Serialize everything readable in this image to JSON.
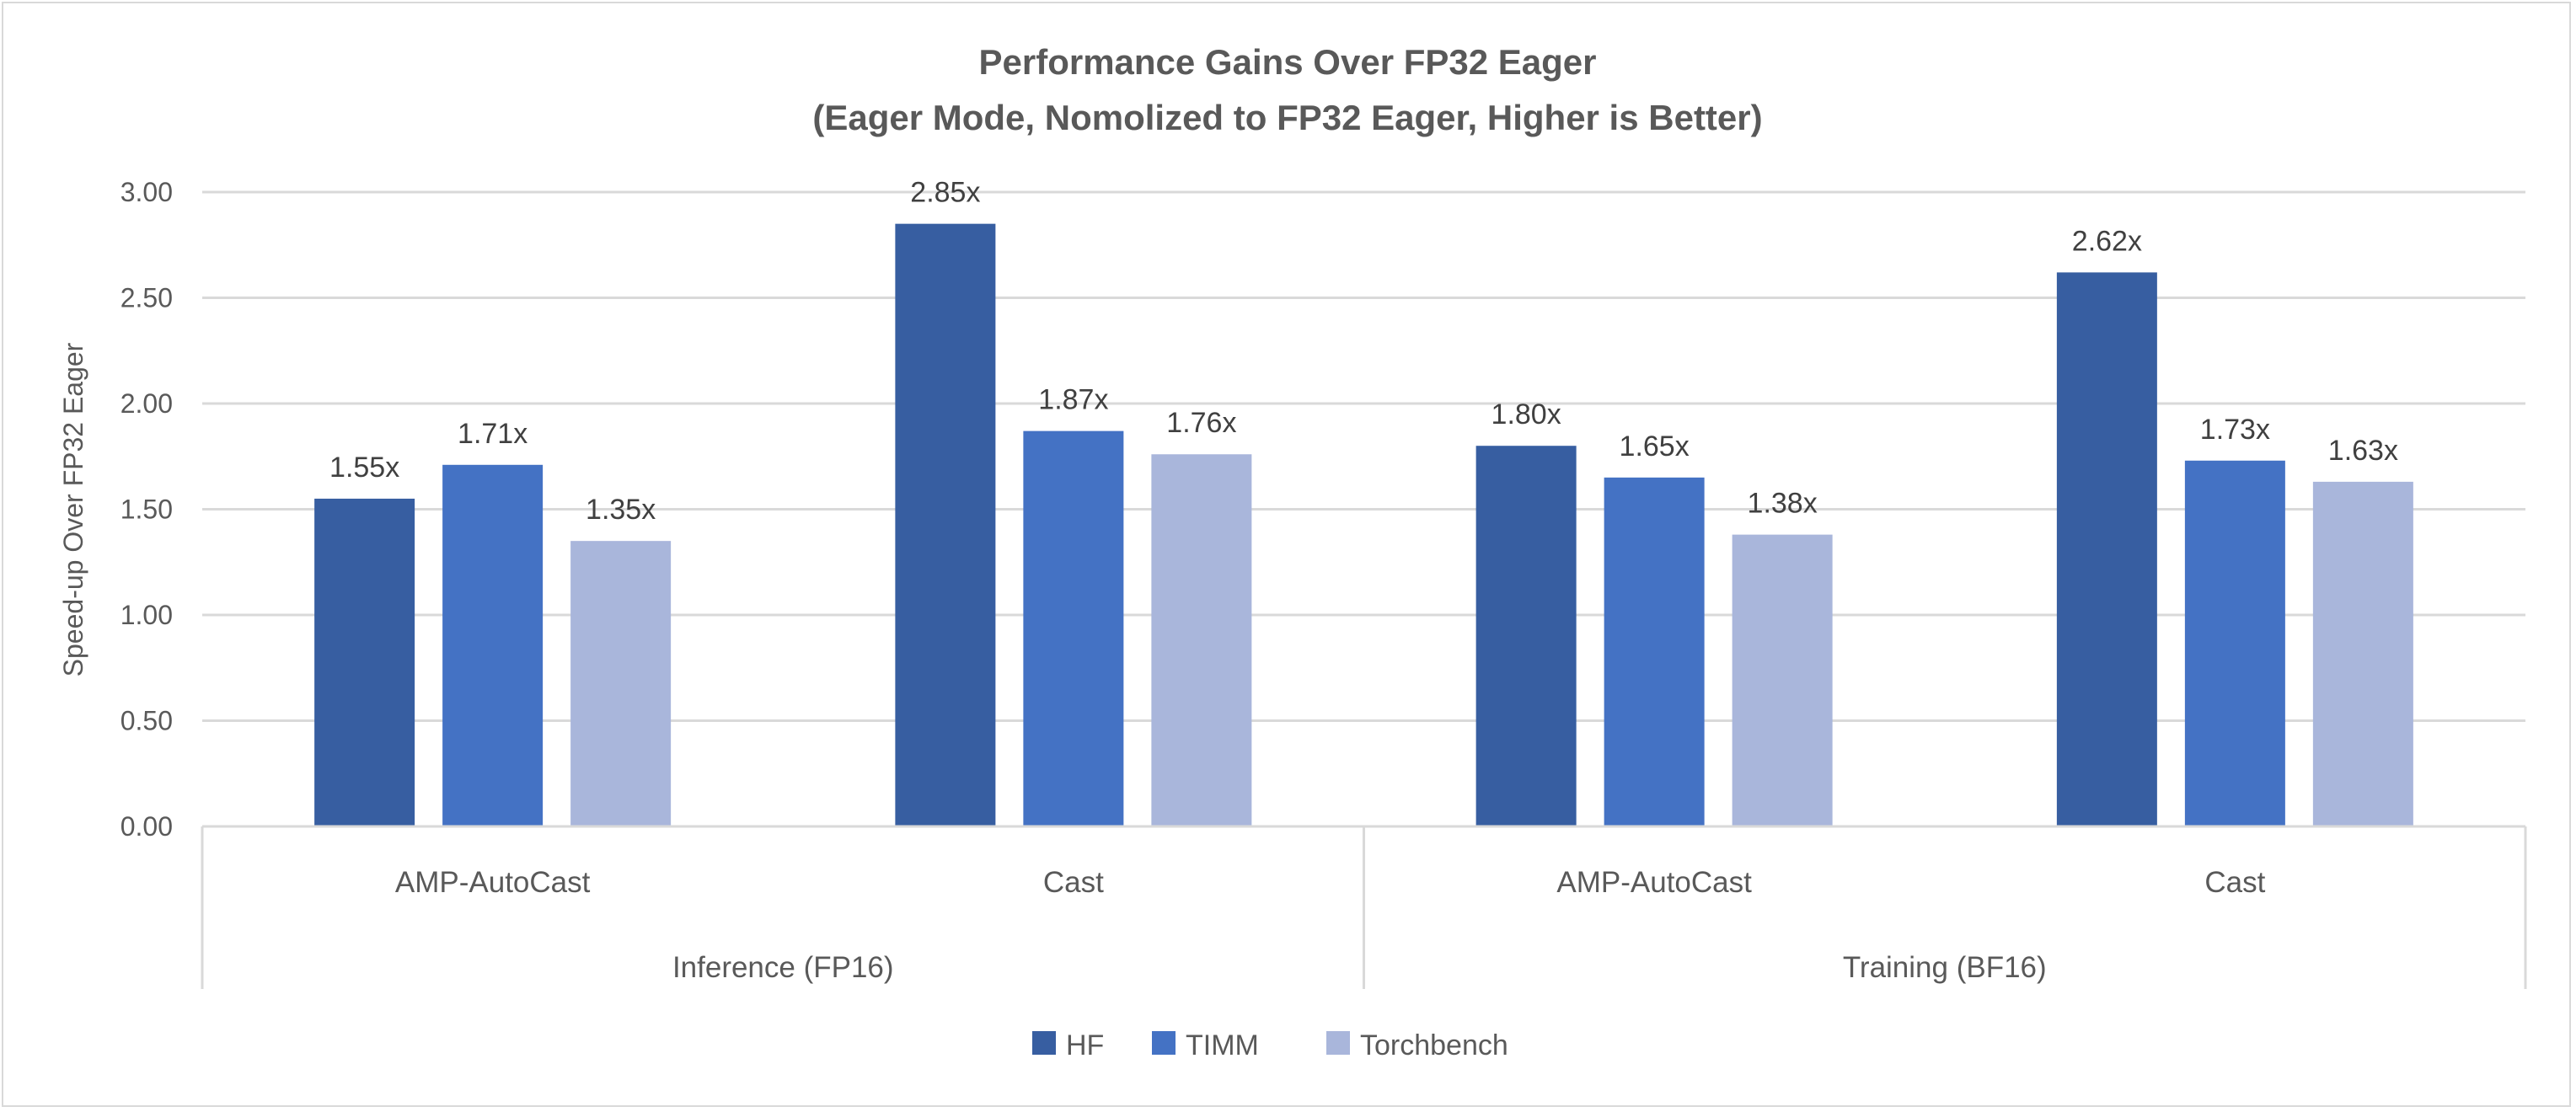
{
  "chart_data": {
    "type": "bar",
    "title": "Performance Gains Over FP32 Eager",
    "subtitle": "(Eager Mode, Nomolized to FP32 Eager, Higher is Better)",
    "xlabel": "",
    "ylabel": "Speed-up Over FP32 Eager",
    "ylim": [
      0,
      3
    ],
    "yticks": [
      "0.00",
      "0.50",
      "1.00",
      "1.50",
      "2.00",
      "2.50",
      "3.00"
    ],
    "grid": true,
    "legend_position": "bottom",
    "groups": [
      {
        "label": "Inference (FP16)",
        "categories": [
          "AMP-AutoCast",
          "Cast"
        ]
      },
      {
        "label": "Training (BF16)",
        "categories": [
          "AMP-AutoCast",
          "Cast"
        ]
      }
    ],
    "categories": [
      "AMP-AutoCast",
      "Cast",
      "AMP-AutoCast",
      "Cast"
    ],
    "series": [
      {
        "name": "HF",
        "color": "#375EA1",
        "values": [
          1.55,
          2.85,
          1.8,
          2.62
        ],
        "labels": [
          "1.55x",
          "2.85x",
          "1.80x",
          "2.62x"
        ]
      },
      {
        "name": "TIMM",
        "color": "#4472C4",
        "values": [
          1.71,
          1.87,
          1.65,
          1.73
        ],
        "labels": [
          "1.71x",
          "1.87x",
          "1.65x",
          "1.73x"
        ]
      },
      {
        "name": "Torchbench",
        "color": "#A9B6DB",
        "values": [
          1.35,
          1.76,
          1.38,
          1.63
        ],
        "labels": [
          "1.35x",
          "1.76x",
          "1.38x",
          "1.63x"
        ]
      }
    ]
  }
}
